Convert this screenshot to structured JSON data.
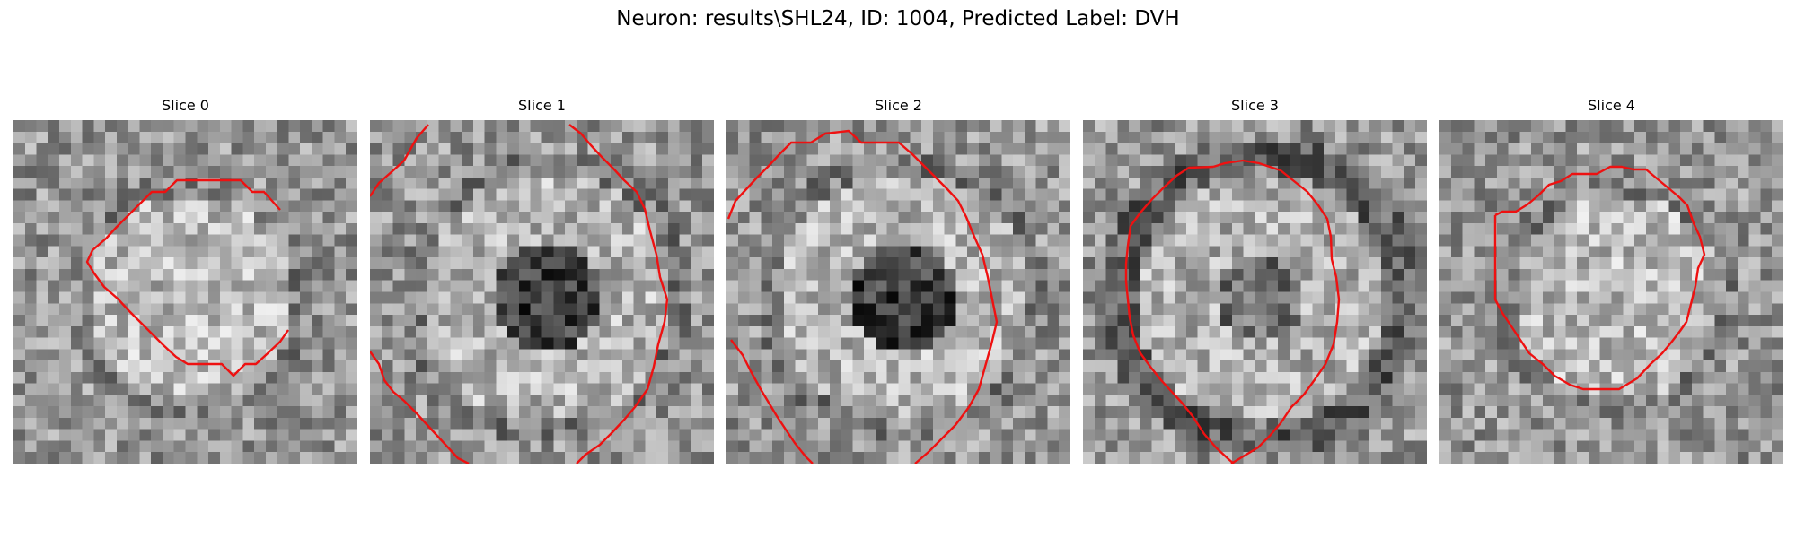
{
  "figure": {
    "title": "Neuron: results\\SHL24, ID: 1004, Predicted Label: DVH",
    "contour_color": "#ee1111"
  },
  "slices": [
    {
      "title": "Slice 0",
      "seed": 11,
      "pattern": "bright-center"
    },
    {
      "title": "Slice 1",
      "seed": 23,
      "pattern": "dark-center-ring"
    },
    {
      "title": "Slice 2",
      "seed": 37,
      "pattern": "dark-center-ring"
    },
    {
      "title": "Slice 3",
      "seed": 41,
      "pattern": "dark-border-ring"
    },
    {
      "title": "Slice 4",
      "seed": 53,
      "pattern": "bright-center"
    }
  ]
}
